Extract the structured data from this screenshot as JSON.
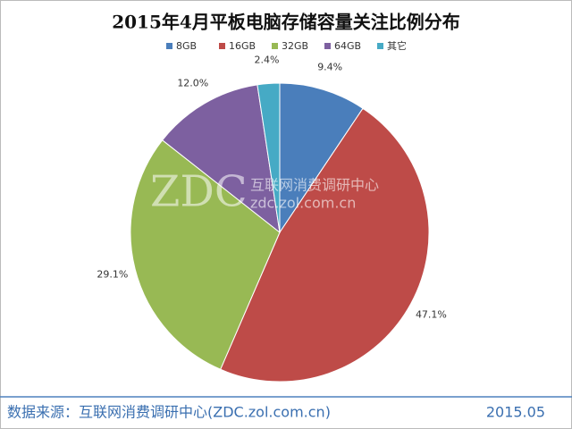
{
  "chart_data": {
    "type": "pie",
    "title": "2015年4月平板电脑存储容量关注比例分布",
    "categories": [
      "8GB",
      "16GB",
      "32GB",
      "64GB",
      "其它"
    ],
    "values": [
      9.4,
      47.1,
      29.1,
      12.0,
      2.4
    ],
    "value_labels": [
      "9.4%",
      "47.1%",
      "29.1%",
      "12.0%",
      "2.4%"
    ],
    "colors": [
      "#4a7ebb",
      "#be4b48",
      "#98b954",
      "#7d60a0",
      "#46aac5"
    ],
    "legend": "top",
    "watermark": [
      "ZDC",
      "互联网消费调研中心",
      "zdc.zol.com.cn"
    ],
    "source": "数据来源：互联网消费调研中心(ZDC.zol.com.cn)",
    "date": "2015.05"
  }
}
